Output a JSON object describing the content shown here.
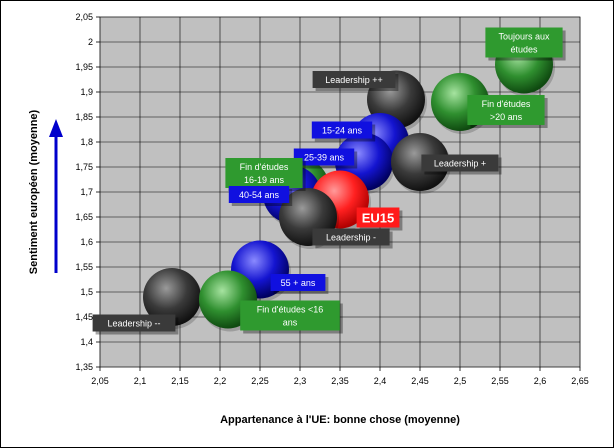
{
  "chart_data": {
    "type": "scatter",
    "xlabel": "Appartenance à l'UE: bonne chose (moyenne)",
    "ylabel": "Sentiment européen (moyenne)",
    "xlim": [
      2.05,
      2.65
    ],
    "ylim": [
      1.35,
      2.05
    ],
    "x_ticks": [
      "2,05",
      "2,1",
      "2,15",
      "2,2",
      "2,25",
      "2,3",
      "2,35",
      "2,4",
      "2,45",
      "2,5",
      "2,55",
      "2,6",
      "2,65"
    ],
    "y_ticks": [
      "1,35",
      "1,4",
      "1,45",
      "1,5",
      "1,55",
      "1,6",
      "1,65",
      "1,7",
      "1,75",
      "1,8",
      "1,85",
      "1,9",
      "1,95",
      "2",
      "2,05"
    ],
    "grid": true,
    "colors": {
      "green": "#2f8f2f",
      "blue": "#1414d0",
      "black": "#3a3a3a",
      "red": "#ff2020"
    },
    "points": [
      {
        "label_lines": [
          "Toujours aux",
          "études"
        ],
        "x": 2.58,
        "y": 1.955,
        "color": "green"
      },
      {
        "label_lines": [
          "Fin d'études",
          ">20 ans"
        ],
        "x": 2.5,
        "y": 1.88,
        "color": "green"
      },
      {
        "label_lines": [
          "Leadership ++"
        ],
        "x": 2.42,
        "y": 1.885,
        "color": "black"
      },
      {
        "label_lines": [
          "15-24 ans"
        ],
        "x": 2.4,
        "y": 1.8,
        "color": "blue"
      },
      {
        "label_lines": [
          "25-39 ans"
        ],
        "x": 2.38,
        "y": 1.76,
        "color": "blue"
      },
      {
        "label_lines": [
          "Leadership +"
        ],
        "x": 2.45,
        "y": 1.76,
        "color": "black"
      },
      {
        "label_lines": [
          "Fin d'études",
          "16-19 ans"
        ],
        "x": 2.3,
        "y": 1.71,
        "color": "green"
      },
      {
        "label_lines": [
          "40-54 ans"
        ],
        "x": 2.29,
        "y": 1.695,
        "color": "blue"
      },
      {
        "label_lines": [
          "EU15"
        ],
        "x": 2.35,
        "y": 1.685,
        "color": "red"
      },
      {
        "label_lines": [
          "Leadership -"
        ],
        "x": 2.31,
        "y": 1.65,
        "color": "black"
      },
      {
        "label_lines": [
          "55 + ans"
        ],
        "x": 2.25,
        "y": 1.545,
        "color": "blue"
      },
      {
        "label_lines": [
          "Leadership --"
        ],
        "x": 2.14,
        "y": 1.49,
        "color": "black"
      },
      {
        "label_lines": [
          "Fin d'études <16",
          "ans"
        ],
        "x": 2.21,
        "y": 1.485,
        "color": "green"
      }
    ]
  }
}
